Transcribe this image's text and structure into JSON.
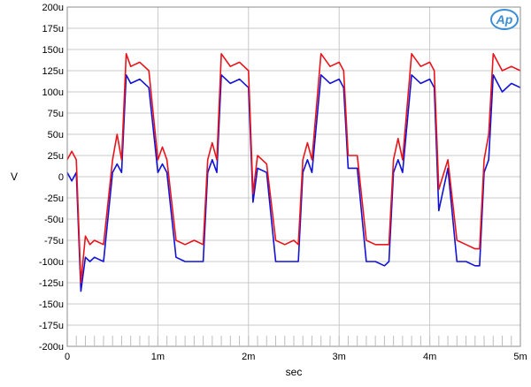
{
  "chart_data": {
    "type": "line",
    "title": "",
    "xlabel": "sec",
    "ylabel": "V",
    "xlim": [
      0,
      0.005
    ],
    "ylim": [
      -0.0002,
      0.0002
    ],
    "grid": true,
    "logo_text": "Ap",
    "x_ticks": [
      {
        "value": 0,
        "label": "0"
      },
      {
        "value": 0.001,
        "label": "1m"
      },
      {
        "value": 0.002,
        "label": "2m"
      },
      {
        "value": 0.003,
        "label": "3m"
      },
      {
        "value": 0.004,
        "label": "4m"
      },
      {
        "value": 0.005,
        "label": "5m"
      }
    ],
    "y_ticks": [
      {
        "value": 0.0002,
        "label": "200u"
      },
      {
        "value": 0.000175,
        "label": "175u"
      },
      {
        "value": 0.00015,
        "label": "150u"
      },
      {
        "value": 0.000125,
        "label": "125u"
      },
      {
        "value": 0.0001,
        "label": "100u"
      },
      {
        "value": 7.5e-05,
        "label": "75u"
      },
      {
        "value": 5e-05,
        "label": "50u"
      },
      {
        "value": 2.5e-05,
        "label": "25u"
      },
      {
        "value": 0,
        "label": "0"
      },
      {
        "value": -2.5e-05,
        "label": "-25u"
      },
      {
        "value": -5e-05,
        "label": "-50u"
      },
      {
        "value": -7.5e-05,
        "label": "-75u"
      },
      {
        "value": -0.0001,
        "label": "-100u"
      },
      {
        "value": -0.000125,
        "label": "-125u"
      },
      {
        "value": -0.00015,
        "label": "-150u"
      },
      {
        "value": -0.000175,
        "label": "-175u"
      },
      {
        "value": -0.0002,
        "label": "-200u"
      }
    ],
    "colors": {
      "red": "#e8141b",
      "blue": "#1212d6",
      "grid": "#c8c8c8",
      "frame": "#8c8c8c",
      "logo": "#3b8fd6"
    },
    "series": [
      {
        "color": "red",
        "x": [
          0,
          5e-05,
          0.0001,
          0.00015,
          0.0002,
          0.00025,
          0.0003,
          0.0004,
          0.0005,
          0.00055,
          0.0006,
          0.00065,
          0.0007,
          0.0008,
          0.0009,
          0.001,
          0.00105,
          0.0011,
          0.0012,
          0.0013,
          0.0014,
          0.0015,
          0.00155,
          0.0016,
          0.00165,
          0.0017,
          0.0018,
          0.0019,
          0.002,
          0.00205,
          0.0021,
          0.0022,
          0.0023,
          0.0024,
          0.0025,
          0.00255,
          0.0026,
          0.00265,
          0.0027,
          0.0028,
          0.0029,
          0.003,
          0.00305,
          0.0031,
          0.0032,
          0.0033,
          0.0034,
          0.0035,
          0.00355,
          0.0036,
          0.00365,
          0.0037,
          0.0038,
          0.0039,
          0.004,
          0.00405,
          0.0041,
          0.0042,
          0.0043,
          0.0044,
          0.0045,
          0.00455,
          0.0046,
          0.00465,
          0.0047,
          0.0048,
          0.0049,
          0.005
        ],
        "y": [
          2e-05,
          3e-05,
          2e-05,
          -0.000125,
          -7e-05,
          -8e-05,
          -7.5e-05,
          -8e-05,
          2e-05,
          5e-05,
          2e-05,
          0.000145,
          0.00013,
          0.000135,
          0.000125,
          2e-05,
          3.5e-05,
          2e-05,
          -7.5e-05,
          -8e-05,
          -7.5e-05,
          -8e-05,
          2e-05,
          4e-05,
          2e-05,
          0.000145,
          0.00013,
          0.000135,
          0.000125,
          -2e-05,
          2.5e-05,
          1.5e-05,
          -7.5e-05,
          -8e-05,
          -7.5e-05,
          -8e-05,
          2e-05,
          4e-05,
          2e-05,
          0.000145,
          0.00013,
          0.000135,
          0.000125,
          2.5e-05,
          2.5e-05,
          -7.5e-05,
          -8e-05,
          -8e-05,
          -8e-05,
          2e-05,
          4.5e-05,
          2e-05,
          0.000145,
          0.00013,
          0.000135,
          0.000125,
          -1.5e-05,
          2e-05,
          -7.5e-05,
          -8e-05,
          -8.5e-05,
          -8.5e-05,
          2e-05,
          5e-05,
          0.000145,
          0.000125,
          0.00013,
          0.000125
        ]
      },
      {
        "color": "blue",
        "x": [
          0,
          5e-05,
          0.0001,
          0.00015,
          0.0002,
          0.00025,
          0.0003,
          0.0004,
          0.0005,
          0.00055,
          0.0006,
          0.00065,
          0.0007,
          0.0008,
          0.0009,
          0.001,
          0.00105,
          0.0011,
          0.0012,
          0.0013,
          0.0014,
          0.0015,
          0.00155,
          0.0016,
          0.00165,
          0.0017,
          0.0018,
          0.0019,
          0.002,
          0.00205,
          0.0021,
          0.0022,
          0.0023,
          0.0024,
          0.0025,
          0.00255,
          0.0026,
          0.00265,
          0.0027,
          0.0028,
          0.0029,
          0.003,
          0.00305,
          0.0031,
          0.0032,
          0.0033,
          0.0034,
          0.0035,
          0.00355,
          0.0036,
          0.00365,
          0.0037,
          0.0038,
          0.0039,
          0.004,
          0.00405,
          0.0041,
          0.0042,
          0.0043,
          0.0044,
          0.0045,
          0.00455,
          0.0046,
          0.00465,
          0.0047,
          0.0048,
          0.0049,
          0.005
        ],
        "y": [
          5e-06,
          -5e-06,
          5e-06,
          -0.000135,
          -9.5e-05,
          -0.0001,
          -9.5e-05,
          -0.0001,
          5e-06,
          1.5e-05,
          5e-06,
          0.00012,
          0.00011,
          0.000115,
          0.000105,
          5e-06,
          1.5e-05,
          5e-06,
          -9.5e-05,
          -0.0001,
          -0.0001,
          -0.0001,
          5e-06,
          2e-05,
          5e-06,
          0.00012,
          0.00011,
          0.000115,
          0.000105,
          -3e-05,
          1e-05,
          5e-06,
          -0.0001,
          -0.0001,
          -0.0001,
          -0.0001,
          5e-06,
          2e-05,
          5e-06,
          0.00012,
          0.00011,
          0.000115,
          0.000105,
          1e-05,
          1e-05,
          -0.0001,
          -0.0001,
          -0.000105,
          -0.0001,
          5e-06,
          2e-05,
          5e-06,
          0.00012,
          0.00011,
          0.000115,
          0.000105,
          -4e-05,
          1e-05,
          -0.0001,
          -0.0001,
          -0.000105,
          -0.000105,
          5e-06,
          2e-05,
          0.00012,
          0.0001,
          0.00011,
          0.000105
        ]
      }
    ]
  }
}
